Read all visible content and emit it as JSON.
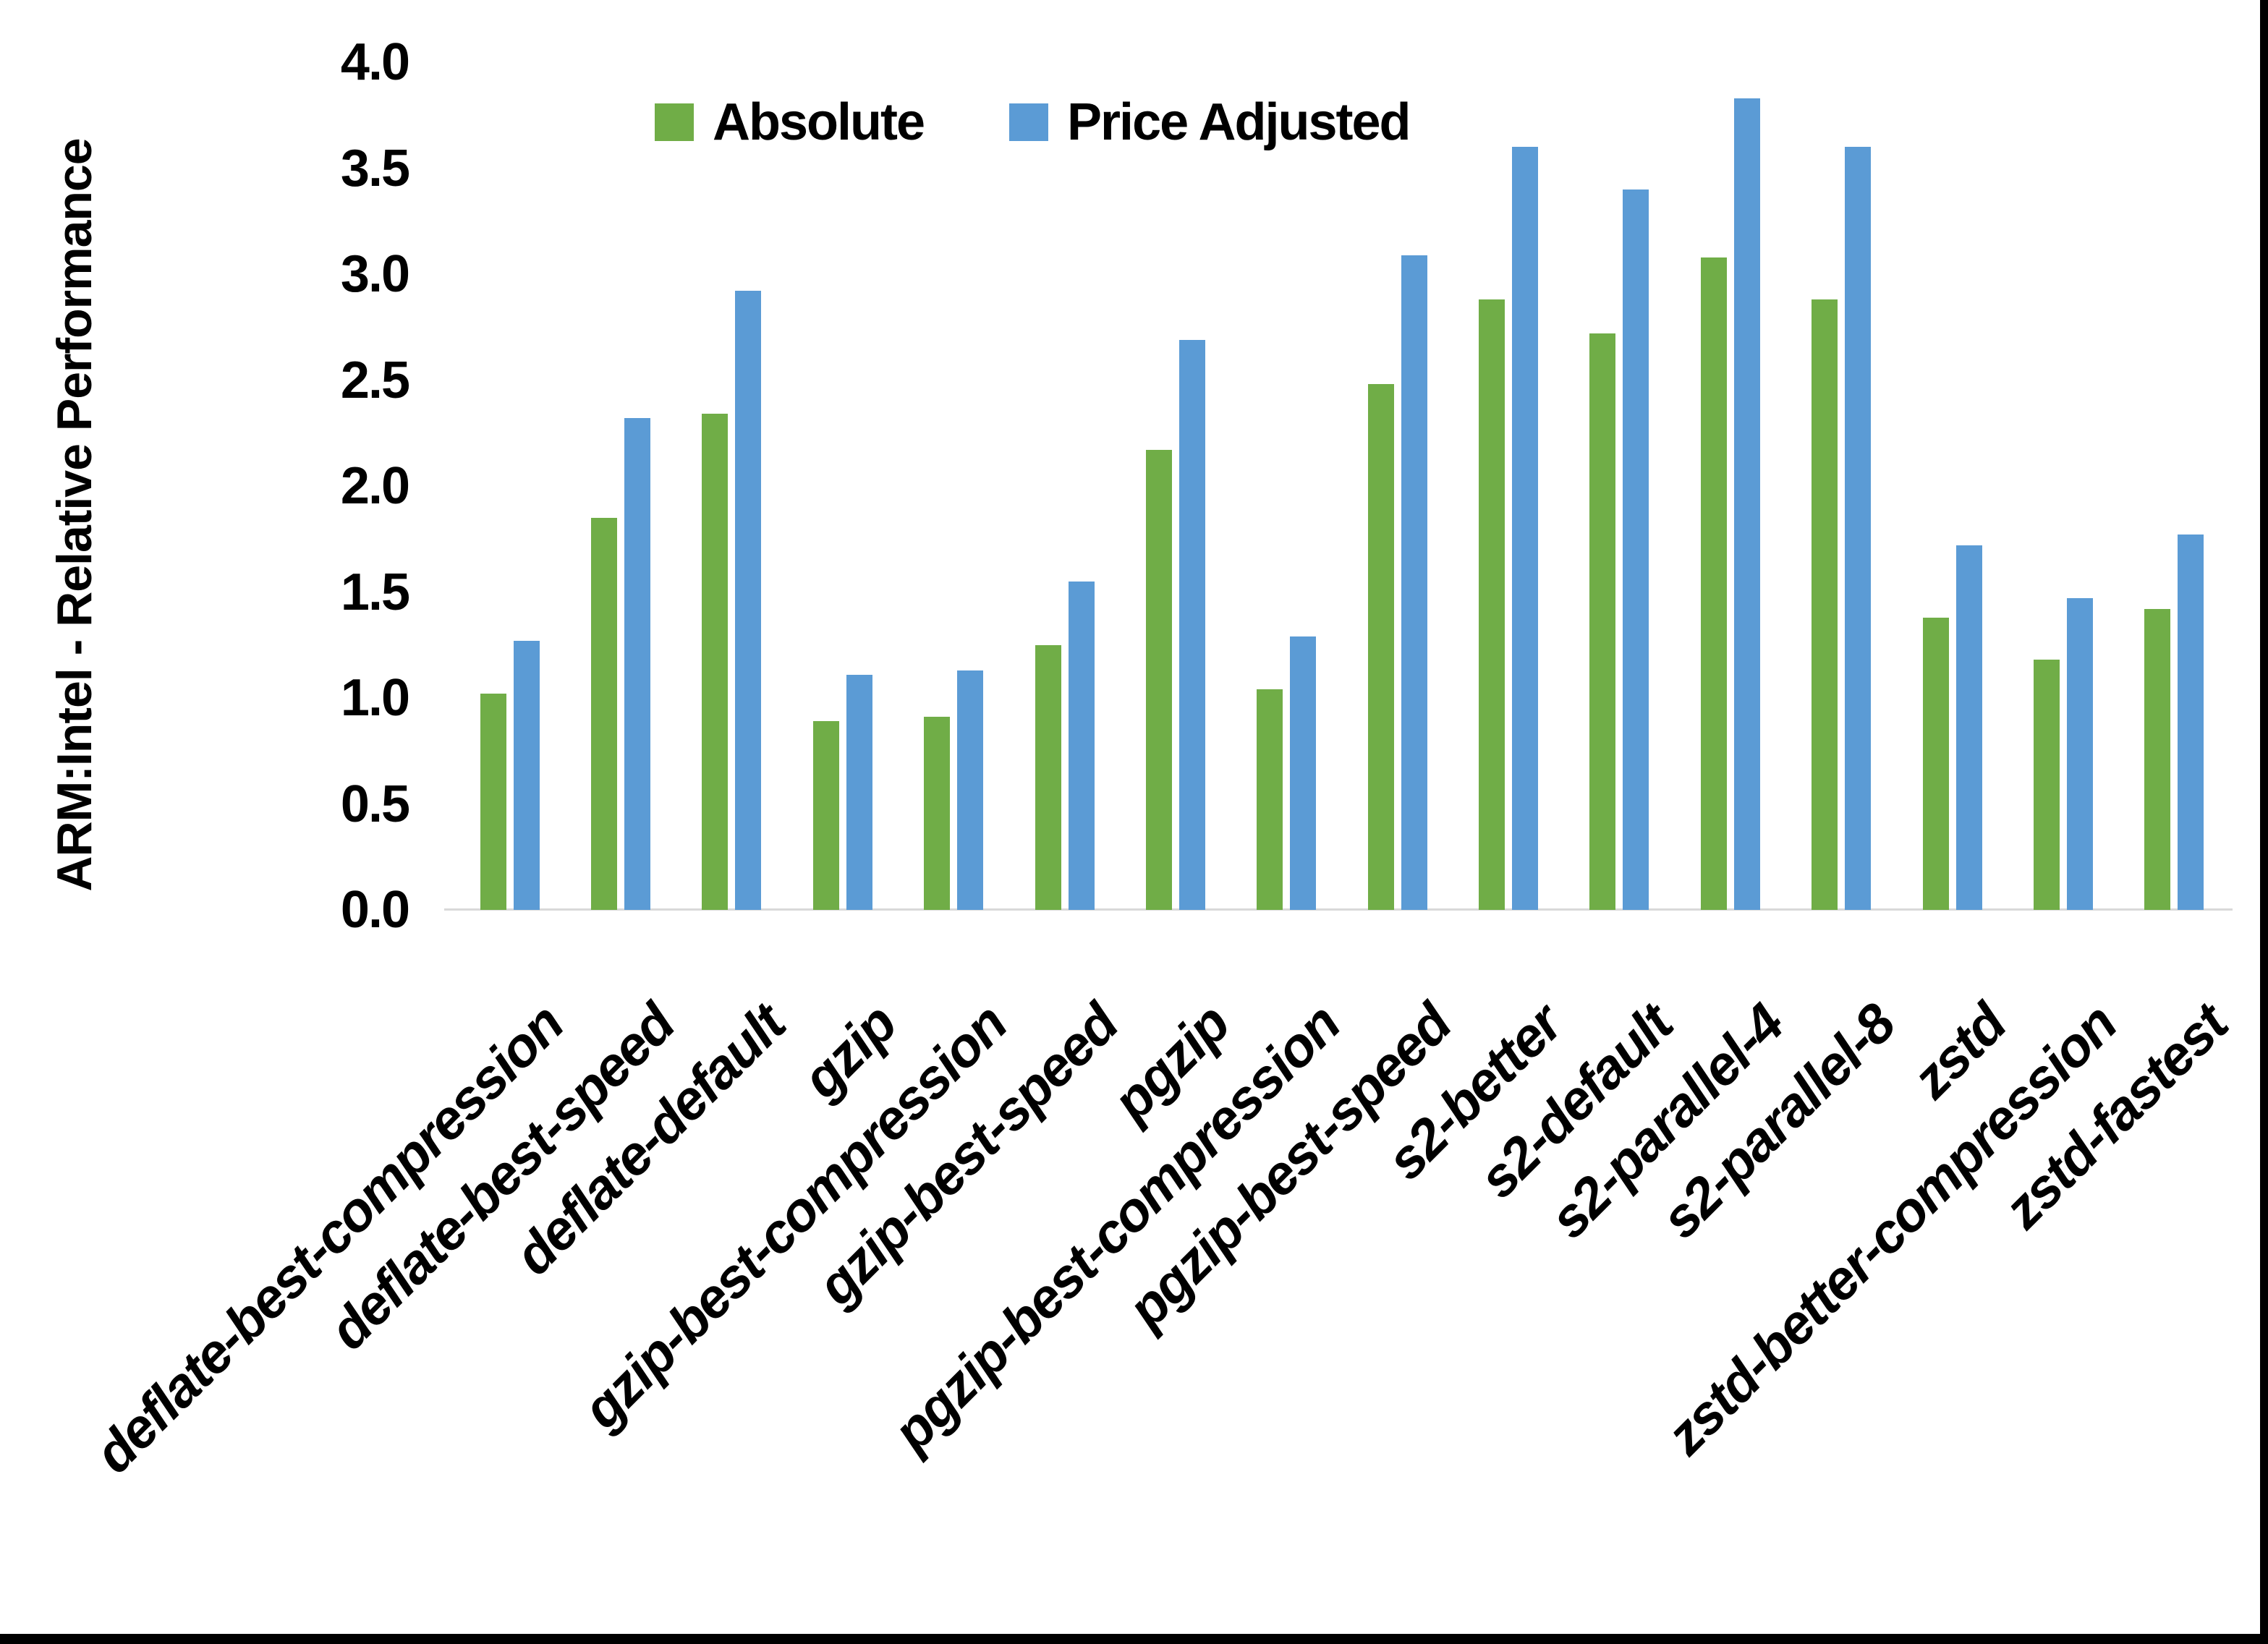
{
  "chart_data": {
    "type": "bar",
    "title": "",
    "ylabel": "ARM:Intel - Relative Performance",
    "xlabel": "",
    "ylim": [
      0.0,
      4.0
    ],
    "ytick_step": 0.5,
    "yticks": [
      "0.0",
      "0.5",
      "1.0",
      "1.5",
      "2.0",
      "2.5",
      "3.0",
      "3.5",
      "4.0"
    ],
    "grid": "off",
    "legend_position": "top",
    "axis_line_color": "#d9d9d9",
    "background_color": "#ffffff",
    "categories": [
      "deflate-best-compression",
      "deflate-best-speed",
      "deflate-default",
      "gzip",
      "gzip-best-compression",
      "gzip-best-speed",
      "pgzip",
      "pgzip-best-compression",
      "pgzip-best-speed",
      "s2-better",
      "s2-default",
      "s2-parallel-4",
      "s2-parallel-8",
      "zstd",
      "zstd-better-compression",
      "zstd-fastest"
    ],
    "series": [
      {
        "name": "Absolute",
        "color": "#70AD47",
        "values": [
          1.02,
          1.85,
          2.34,
          0.89,
          0.91,
          1.25,
          2.17,
          1.04,
          2.48,
          2.88,
          2.72,
          3.08,
          2.88,
          1.38,
          1.18,
          1.42
        ]
      },
      {
        "name": "Price Adjusted",
        "color": "#5B9BD5",
        "values": [
          1.27,
          2.32,
          2.92,
          1.11,
          1.13,
          1.55,
          2.69,
          1.29,
          3.09,
          3.6,
          3.4,
          3.83,
          3.6,
          1.72,
          1.47,
          1.77
        ]
      }
    ]
  }
}
